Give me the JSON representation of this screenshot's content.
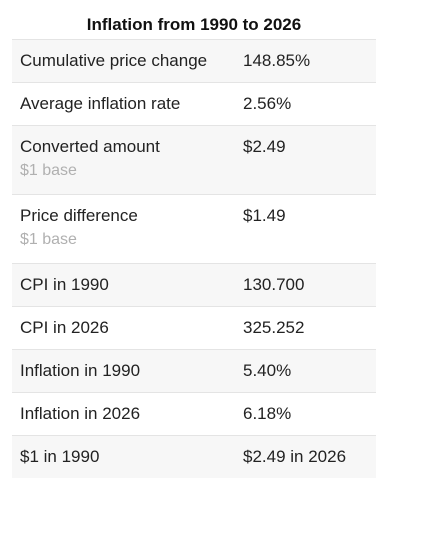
{
  "title": "Inflation from 1990 to 2026",
  "rows": [
    {
      "label": "Cumulative price change",
      "value": "148.85%"
    },
    {
      "label": "Average inflation rate",
      "value": "2.56%"
    },
    {
      "label": "Converted amount",
      "sub": "$1 base",
      "value": "$2.49"
    },
    {
      "label": "Price difference",
      "sub": "$1 base",
      "value": "$1.49"
    },
    {
      "label": "CPI in 1990",
      "value": "130.700"
    },
    {
      "label": "CPI in 2026",
      "value": "325.252"
    },
    {
      "label": "Inflation in 1990",
      "value": "5.40%"
    },
    {
      "label": "Inflation in 2026",
      "value": "6.18%"
    },
    {
      "label": "$1 in 1990",
      "value": "$2.49 in 2026"
    }
  ]
}
